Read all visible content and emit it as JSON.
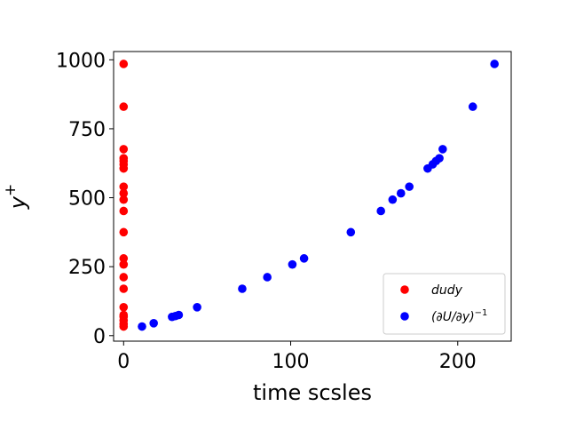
{
  "chart_data": {
    "type": "scatter",
    "title": "",
    "xlabel": "time scsles",
    "ylabel": "y",
    "ylabel_superscript": "+",
    "xlim": [
      -6,
      232
    ],
    "ylim": [
      -20,
      1030
    ],
    "x_ticks": [
      0,
      100,
      200
    ],
    "y_ticks": [
      0,
      250,
      500,
      750,
      1000
    ],
    "grid": false,
    "legend_position": "lower-right",
    "series": [
      {
        "name": "dudy",
        "color": "#ff0000",
        "points": [
          {
            "x": 0,
            "y": 33
          },
          {
            "x": 0,
            "y": 42
          },
          {
            "x": 0,
            "y": 55
          },
          {
            "x": 0,
            "y": 68
          },
          {
            "x": 0,
            "y": 75
          },
          {
            "x": 0,
            "y": 103
          },
          {
            "x": 0,
            "y": 170
          },
          {
            "x": 0,
            "y": 212
          },
          {
            "x": 0,
            "y": 258
          },
          {
            "x": 0,
            "y": 280
          },
          {
            "x": 0,
            "y": 375
          },
          {
            "x": 0,
            "y": 452
          },
          {
            "x": 0,
            "y": 493
          },
          {
            "x": 0,
            "y": 516
          },
          {
            "x": 0,
            "y": 540
          },
          {
            "x": 0,
            "y": 606
          },
          {
            "x": 0,
            "y": 621
          },
          {
            "x": 0,
            "y": 633
          },
          {
            "x": 0,
            "y": 643
          },
          {
            "x": 0,
            "y": 676
          },
          {
            "x": 0,
            "y": 830
          },
          {
            "x": 0,
            "y": 985
          }
        ]
      },
      {
        "name": "(∂U/∂y)",
        "name_superscript": "−1",
        "color": "#0000ff",
        "points": [
          {
            "x": 11,
            "y": 33
          },
          {
            "x": 18,
            "y": 45
          },
          {
            "x": 29,
            "y": 68
          },
          {
            "x": 31,
            "y": 71
          },
          {
            "x": 33,
            "y": 75
          },
          {
            "x": 44,
            "y": 103
          },
          {
            "x": 71,
            "y": 170
          },
          {
            "x": 86,
            "y": 212
          },
          {
            "x": 101,
            "y": 258
          },
          {
            "x": 108,
            "y": 280
          },
          {
            "x": 136,
            "y": 375
          },
          {
            "x": 154,
            "y": 452
          },
          {
            "x": 161,
            "y": 493
          },
          {
            "x": 166,
            "y": 516
          },
          {
            "x": 171,
            "y": 540
          },
          {
            "x": 182,
            "y": 606
          },
          {
            "x": 185,
            "y": 621
          },
          {
            "x": 187,
            "y": 633
          },
          {
            "x": 189,
            "y": 643
          },
          {
            "x": 191,
            "y": 676
          },
          {
            "x": 209,
            "y": 830
          },
          {
            "x": 222,
            "y": 985
          }
        ]
      }
    ]
  }
}
